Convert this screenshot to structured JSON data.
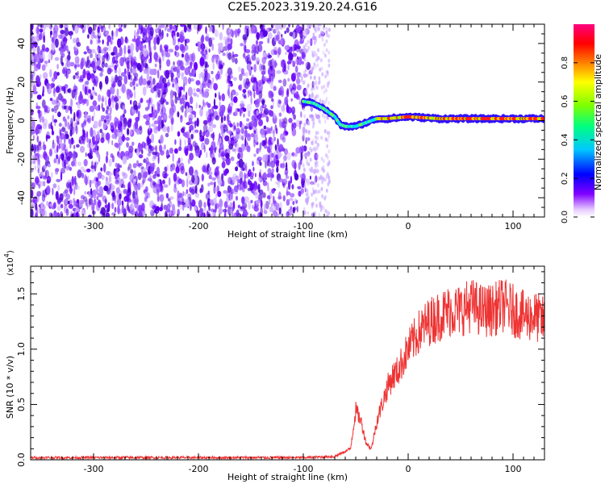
{
  "title": "C2E5.2023.319.20.24.G16",
  "chart_data": [
    {
      "type": "heatmap",
      "xlabel": "Height of straight line (km)",
      "ylabel": "Frequency (Hz)",
      "xlim": [
        -360,
        130
      ],
      "ylim": [
        -50,
        50
      ],
      "xticks": [
        -300,
        -200,
        -100,
        0,
        100
      ],
      "yticks": [
        -40,
        -20,
        0,
        20,
        40
      ],
      "colorbar": {
        "label": "Normalized spectral amplitude",
        "range": [
          0,
          1
        ],
        "ticks": [
          "0.0",
          "0.2",
          "0.4",
          "0.6",
          "0.8"
        ],
        "colors": [
          "#ffffff",
          "#8000ff",
          "#0000ff",
          "#00c8ff",
          "#00ff80",
          "#80ff00",
          "#ffff00",
          "#ff8000",
          "#ff0000",
          "#ff0080"
        ]
      },
      "noise_region_x": [
        -360,
        -80
      ],
      "signal_trace": [
        {
          "x": -100,
          "y": 10
        },
        {
          "x": -90,
          "y": 9
        },
        {
          "x": -80,
          "y": 6
        },
        {
          "x": -70,
          "y": 2
        },
        {
          "x": -65,
          "y": -2
        },
        {
          "x": -60,
          "y": -3
        },
        {
          "x": -50,
          "y": -3
        },
        {
          "x": -40,
          "y": -1
        },
        {
          "x": -30,
          "y": 1
        },
        {
          "x": -20,
          "y": 1
        },
        {
          "x": 0,
          "y": 2
        },
        {
          "x": 30,
          "y": 1
        },
        {
          "x": 60,
          "y": 1
        },
        {
          "x": 90,
          "y": 1
        },
        {
          "x": 130,
          "y": 1
        }
      ]
    },
    {
      "type": "line",
      "xlabel": "Height of straight line (km)",
      "ylabel": "SNR (10 * v/v)",
      "scale_label": "(x10^4)",
      "xlim": [
        -360,
        130
      ],
      "ylim": [
        0,
        1.75
      ],
      "xticks": [
        -300,
        -200,
        -100,
        0,
        100
      ],
      "yticks": [
        "0.0",
        "0.5",
        "1.0",
        "1.5"
      ],
      "series": [
        {
          "color": "#ee3333",
          "x": [
            -360,
            -300,
            -200,
            -100,
            -70,
            -55,
            -50,
            -45,
            -40,
            -35,
            -30,
            -25,
            -20,
            -15,
            -10,
            -5,
            0,
            10,
            20,
            30,
            40,
            50,
            60,
            70,
            80,
            90,
            100,
            110,
            120,
            130
          ],
          "y": [
            0.02,
            0.02,
            0.02,
            0.02,
            0.03,
            0.1,
            0.45,
            0.35,
            0.15,
            0.1,
            0.35,
            0.5,
            0.65,
            0.75,
            0.8,
            0.9,
            1.0,
            1.15,
            1.25,
            1.3,
            1.35,
            1.35,
            1.4,
            1.35,
            1.35,
            1.4,
            1.35,
            1.3,
            1.3,
            1.25
          ]
        }
      ]
    }
  ]
}
